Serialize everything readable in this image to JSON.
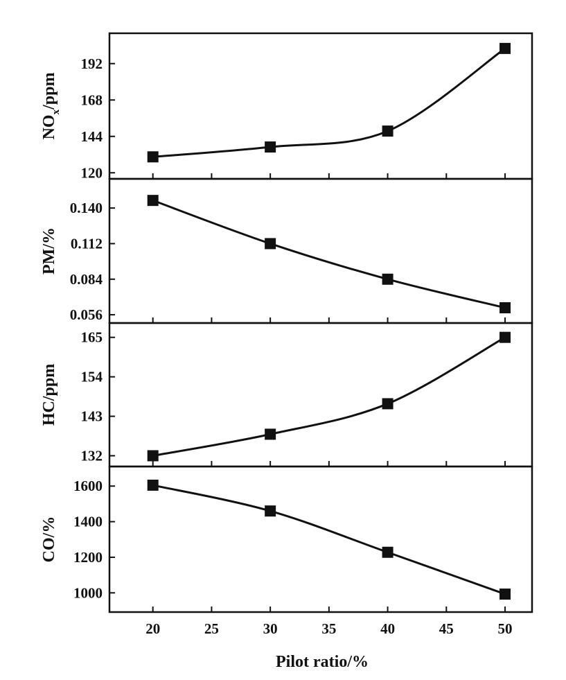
{
  "chart_data": [
    {
      "type": "line",
      "ylabel": "NO",
      "ylabel_sub": "x",
      "ylabel_rest": "/ppm",
      "x": [
        20,
        30,
        40,
        50
      ],
      "values": [
        130.5,
        137,
        147.5,
        202
      ],
      "ylim": [
        116,
        212
      ],
      "yticks": [
        120,
        144,
        168,
        192
      ],
      "ytick_labels": [
        "120",
        "144",
        "168",
        "192"
      ]
    },
    {
      "type": "line",
      "ylabel": "PM/%",
      "x": [
        20,
        30,
        40,
        50
      ],
      "values": [
        0.146,
        0.112,
        0.084,
        0.0615
      ],
      "ylim": [
        0.0495,
        0.163
      ],
      "yticks": [
        0.056,
        0.084,
        0.112,
        0.14
      ],
      "ytick_labels": [
        "0.056",
        "0.084",
        "0.112",
        "0.140"
      ]
    },
    {
      "type": "line",
      "ylabel": "HC/ppm",
      "x": [
        20,
        30,
        40,
        50
      ],
      "values": [
        132,
        138,
        146.5,
        165
      ],
      "ylim": [
        129,
        169
      ],
      "yticks": [
        132,
        143,
        154,
        165
      ],
      "ytick_labels": [
        "132",
        "143",
        "154",
        "165"
      ]
    },
    {
      "type": "line",
      "ylabel": "CO/%",
      "x": [
        20,
        30,
        40,
        50
      ],
      "values": [
        1605,
        1460,
        1228,
        993
      ],
      "ylim": [
        892,
        1710
      ],
      "yticks": [
        1000,
        1200,
        1400,
        1600
      ],
      "ytick_labels": [
        "1000",
        "1200",
        "1400",
        "1600"
      ]
    }
  ],
  "x_axis": {
    "label": "Pilot ratio/%",
    "ticks": [
      20,
      25,
      30,
      35,
      40,
      45,
      50
    ],
    "tick_labels": [
      "20",
      "25",
      "30",
      "35",
      "40",
      "45",
      "50"
    ],
    "xlim": [
      16.3,
      52.3
    ]
  },
  "style": {
    "line_color": "#111111",
    "marker": "square"
  }
}
